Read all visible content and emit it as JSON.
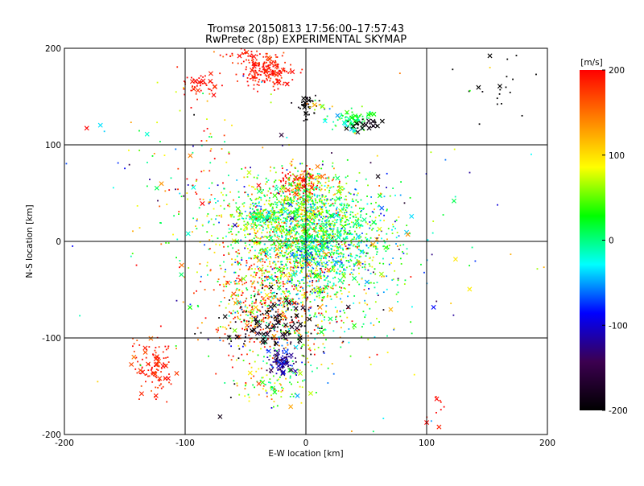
{
  "chart_data": {
    "type": "scatter",
    "title": "Tromsø 20150813 17:56:00–17:57:43",
    "subtitle": "RwPretec (8p) EXPERIMENTAL SKYMAP",
    "xlabel": "E-W location [km]",
    "ylabel": "N-S location [km]",
    "xlim": [
      -200,
      200
    ],
    "ylim": [
      -200,
      200
    ],
    "x_ticks": [
      "-200",
      "-100",
      "0",
      "100",
      "200"
    ],
    "y_ticks": [
      "-200",
      "-100",
      "0",
      "100",
      "200"
    ],
    "grid": true,
    "marker_types": [
      "dot",
      "cross"
    ],
    "colorbar": {
      "label": "[m/s]",
      "range": [
        -200,
        200
      ],
      "ticks": [
        "200",
        "100",
        "0",
        "-100",
        "-200"
      ],
      "colors": [
        "#000000",
        "#3c0050",
        "#0000ff",
        "#00ffff",
        "#00ff00",
        "#ffff00",
        "#ff8000",
        "#ff0000"
      ]
    },
    "clusters": [
      {
        "x": -33,
        "y": 175,
        "sx": 10,
        "sy": 8,
        "n": 160,
        "v": 195,
        "sv": 15,
        "cross": 0.1
      },
      {
        "x": -45,
        "y": 190,
        "sx": 14,
        "sy": 6,
        "n": 60,
        "v": 190,
        "sv": 20,
        "cross": 0.1
      },
      {
        "x": -87,
        "y": 163,
        "sx": 8,
        "sy": 6,
        "n": 45,
        "v": 195,
        "sv": 10,
        "cross": 0.2
      },
      {
        "x": 0,
        "y": 140,
        "sx": 5,
        "sy": 6,
        "n": 45,
        "v": -200,
        "sv": 10,
        "cross": 0.08
      },
      {
        "x": 12,
        "y": 138,
        "sx": 5,
        "sy": 4,
        "n": 15,
        "v": 80,
        "sv": 60,
        "cross": 0.2
      },
      {
        "x": 38,
        "y": 125,
        "sx": 8,
        "sy": 5,
        "n": 90,
        "v": 10,
        "sv": 25,
        "cross": 0.2
      },
      {
        "x": 48,
        "y": 121,
        "sx": 6,
        "sy": 3,
        "n": 30,
        "v": -195,
        "sv": 10,
        "cross": 0.4
      },
      {
        "x": -125,
        "y": -130,
        "sx": 9,
        "sy": 15,
        "n": 110,
        "v": 190,
        "sv": 20,
        "cross": 0.22
      },
      {
        "x": -5,
        "y": 60,
        "sx": 10,
        "sy": 8,
        "n": 110,
        "v": 190,
        "sv": 25,
        "cross": 0.12
      },
      {
        "x": 8,
        "y": 62,
        "sx": 12,
        "sy": 8,
        "n": 60,
        "v": 120,
        "sv": 50,
        "cross": 0.08
      },
      {
        "x": -38,
        "y": 25,
        "sx": 6,
        "sy": 3,
        "n": 80,
        "v": 0,
        "sv": 8,
        "cross": 0.08
      },
      {
        "x": -10,
        "y": 25,
        "sx": 28,
        "sy": 22,
        "n": 900,
        "v": 40,
        "sv": 55,
        "cross": 0.04
      },
      {
        "x": 15,
        "y": 8,
        "sx": 24,
        "sy": 22,
        "n": 600,
        "v": 10,
        "sv": 35,
        "cross": 0.04
      },
      {
        "x": -15,
        "y": -40,
        "sx": 30,
        "sy": 45,
        "n": 850,
        "v": 50,
        "sv": 70,
        "cross": 0.06
      },
      {
        "x": -30,
        "y": -60,
        "sx": 25,
        "sy": 35,
        "n": 350,
        "v": 170,
        "sv": 40,
        "cross": 0.06
      },
      {
        "x": 10,
        "y": -20,
        "sx": 20,
        "sy": 15,
        "n": 200,
        "v": -20,
        "sv": 55,
        "cross": 0.06
      },
      {
        "x": -25,
        "y": -85,
        "sx": 20,
        "sy": 15,
        "n": 150,
        "v": -190,
        "sv": 15,
        "cross": 0.3
      },
      {
        "x": -20,
        "y": -125,
        "sx": 7,
        "sy": 7,
        "n": 90,
        "v": -120,
        "sv": 25,
        "cross": 0.2
      },
      {
        "x": -30,
        "y": -150,
        "sx": 15,
        "sy": 10,
        "n": 80,
        "v": 50,
        "sv": 60,
        "cross": 0.08
      },
      {
        "x": 50,
        "y": -10,
        "sx": 30,
        "sy": 45,
        "n": 200,
        "v": 0,
        "sv": 80,
        "cross": 0.05
      },
      {
        "x": -90,
        "y": 50,
        "sx": 30,
        "sy": 60,
        "n": 140,
        "v": 100,
        "sv": 110,
        "cross": 0.05
      },
      {
        "x": 160,
        "y": 160,
        "sx": 15,
        "sy": 20,
        "n": 20,
        "v": -200,
        "sv": 5,
        "cross": 0.25
      },
      {
        "x": 110,
        "y": -170,
        "sx": 6,
        "sy": 12,
        "n": 10,
        "v": 195,
        "sv": 10,
        "cross": 0.3
      },
      {
        "x": 0,
        "y": 0,
        "sx": 130,
        "sy": 120,
        "n": 120,
        "v": 30,
        "sv": 120,
        "cross": 0.15
      }
    ]
  }
}
